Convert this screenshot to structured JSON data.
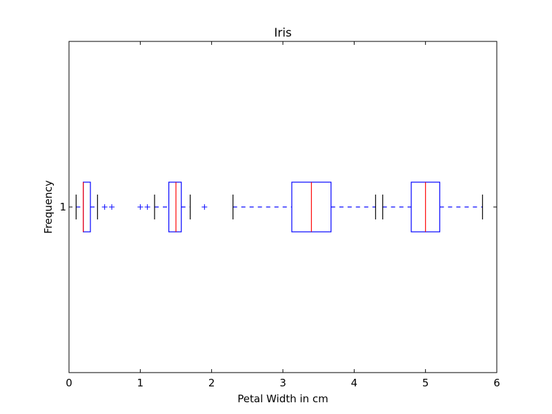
{
  "chart_data": {
    "type": "boxplot",
    "orientation": "horizontal",
    "title": "Iris",
    "xlabel": "Petal Width in cm",
    "ylabel": "Frequency",
    "xlim": [
      0,
      6
    ],
    "x_ticks": [
      "0",
      "1",
      "2",
      "3",
      "4",
      "5",
      "6"
    ],
    "y_ticks": [
      "1"
    ],
    "y_position": 1,
    "grid": false,
    "colors": {
      "box": "#0000ff",
      "median": "#ff0000",
      "whisker": "#0000ff",
      "cap": "#000000",
      "flier": "#0000ff"
    },
    "boxes": [
      {
        "whisker_low": 0.1,
        "q1": 0.2,
        "median": 0.2,
        "q3": 0.3,
        "whisker_high": 0.4,
        "fliers": [
          0.5,
          0.6
        ]
      },
      {
        "whisker_low": 1.2,
        "q1": 1.4,
        "median": 1.5,
        "q3": 1.575,
        "whisker_high": 1.7,
        "fliers": [
          1.0,
          1.1,
          1.9
        ]
      },
      {
        "whisker_low": 2.3,
        "q1": 3.125,
        "median": 3.4,
        "q3": 3.675,
        "whisker_high": 4.3,
        "fliers": []
      },
      {
        "whisker_low": 4.4,
        "q1": 4.8,
        "median": 5.0,
        "q3": 5.2,
        "whisker_high": 5.8,
        "fliers": []
      }
    ]
  }
}
